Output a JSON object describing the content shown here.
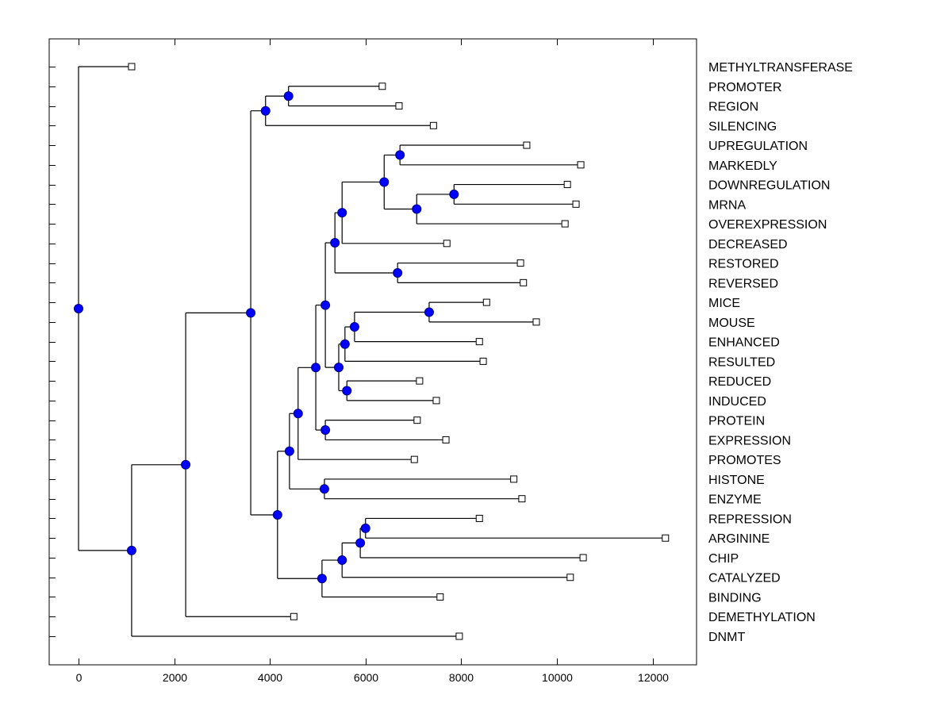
{
  "chart_data": {
    "type": "dendrogram",
    "title": "",
    "xlabel": "",
    "ylabel": "",
    "xlim": [
      -600,
      13000
    ],
    "xticks": [
      0,
      2000,
      4000,
      6000,
      8000,
      10000,
      12000
    ],
    "xtick_labels": [
      "0",
      "2000",
      "4000",
      "6000",
      "8000",
      "10000",
      "12000"
    ],
    "grid": false,
    "colors": {
      "node_fill": "#0000ff",
      "node_stroke": "#000080",
      "leaf_fill": "#ffffff",
      "line": "#000000"
    },
    "leaves": [
      {
        "label": "METHYLTRANSFERASE",
        "x": 1110
      },
      {
        "label": "PROMOTER",
        "x": 6350
      },
      {
        "label": "REGION",
        "x": 6700
      },
      {
        "label": "SILENCING",
        "x": 7420
      },
      {
        "label": "UPREGULATION",
        "x": 9370
      },
      {
        "label": "MARKEDLY",
        "x": 10500
      },
      {
        "label": "DOWNREGULATION",
        "x": 10220
      },
      {
        "label": "MRNA",
        "x": 10400
      },
      {
        "label": "OVEREXPRESSION",
        "x": 10170
      },
      {
        "label": "DECREASED",
        "x": 7700
      },
      {
        "label": "RESTORED",
        "x": 9240
      },
      {
        "label": "REVERSED",
        "x": 9300
      },
      {
        "label": "MICE",
        "x": 8530
      },
      {
        "label": "MOUSE",
        "x": 9570
      },
      {
        "label": "ENHANCED",
        "x": 8380
      },
      {
        "label": "RESULTED",
        "x": 8460
      },
      {
        "label": "REDUCED",
        "x": 7130
      },
      {
        "label": "INDUCED",
        "x": 7480
      },
      {
        "label": "PROTEIN",
        "x": 7080
      },
      {
        "label": "EXPRESSION",
        "x": 7680
      },
      {
        "label": "PROMOTES",
        "x": 7020
      },
      {
        "label": "HISTONE",
        "x": 9100
      },
      {
        "label": "ENZYME",
        "x": 9270
      },
      {
        "label": "REPRESSION",
        "x": 8380
      },
      {
        "label": "ARGININE",
        "x": 12270
      },
      {
        "label": "CHIP",
        "x": 10550
      },
      {
        "label": "CATALYZED",
        "x": 10280
      },
      {
        "label": "BINDING",
        "x": 7560
      },
      {
        "label": "DEMETHYLATION",
        "x": 4500
      },
      {
        "label": "DNMT",
        "x": 7960
      }
    ],
    "nodes": [
      {
        "id": "root",
        "x": 0,
        "children": [
          "L:METHYLTRANSFERASE",
          "A"
        ]
      },
      {
        "id": "A",
        "x": 1110,
        "children": [
          "B",
          "L:DNMT"
        ]
      },
      {
        "id": "B",
        "x": 2240,
        "children": [
          "C",
          "L:DEMETHYLATION"
        ]
      },
      {
        "id": "C",
        "x": 3600,
        "children": [
          "D",
          "E"
        ]
      },
      {
        "id": "D",
        "x": 3910,
        "children": [
          "F",
          "L:SILENCING"
        ]
      },
      {
        "id": "F",
        "x": 4390,
        "children": [
          "L:PROMOTER",
          "L:REGION"
        ]
      },
      {
        "id": "E",
        "x": 4160,
        "children": [
          "G",
          "H"
        ]
      },
      {
        "id": "G",
        "x": 4410,
        "children": [
          "I",
          "J"
        ]
      },
      {
        "id": "J",
        "x": 5140,
        "children": [
          "L:HISTONE",
          "L:ENZYME"
        ]
      },
      {
        "id": "I",
        "x": 4590,
        "children": [
          "K",
          "L:PROMOTES"
        ]
      },
      {
        "id": "K",
        "x": 4960,
        "children": [
          "Lx",
          "M"
        ]
      },
      {
        "id": "M",
        "x": 5160,
        "children": [
          "L:PROTEIN",
          "L:EXPRESSION"
        ]
      },
      {
        "id": "Lx",
        "x": 5160,
        "children": [
          "N",
          "O"
        ]
      },
      {
        "id": "N",
        "x": 5360,
        "children": [
          "P",
          "Q"
        ]
      },
      {
        "id": "Q",
        "x": 6670,
        "children": [
          "L:RESTORED",
          "L:REVERSED"
        ]
      },
      {
        "id": "P",
        "x": 5510,
        "children": [
          "R",
          "L:DECREASED"
        ]
      },
      {
        "id": "R",
        "x": 6390,
        "children": [
          "S",
          "T"
        ]
      },
      {
        "id": "S",
        "x": 6720,
        "children": [
          "L:UPREGULATION",
          "L:MARKEDLY"
        ]
      },
      {
        "id": "T",
        "x": 7070,
        "children": [
          "U",
          "L:OVEREXPRESSION"
        ]
      },
      {
        "id": "U",
        "x": 7850,
        "children": [
          "L:DOWNREGULATION",
          "L:MRNA"
        ]
      },
      {
        "id": "O",
        "x": 5440,
        "children": [
          "V",
          "W"
        ]
      },
      {
        "id": "W",
        "x": 5610,
        "children": [
          "L:REDUCED",
          "L:INDUCED"
        ]
      },
      {
        "id": "V",
        "x": 5570,
        "children": [
          "X",
          "L:RESULTED"
        ]
      },
      {
        "id": "X",
        "x": 5770,
        "children": [
          "Y",
          "L:ENHANCED"
        ]
      },
      {
        "id": "Y",
        "x": 7330,
        "children": [
          "L:MICE",
          "L:MOUSE"
        ]
      },
      {
        "id": "H",
        "x": 5090,
        "children": [
          "Z",
          "L:BINDING"
        ]
      },
      {
        "id": "Z",
        "x": 5510,
        "children": [
          "AA",
          "L:CATALYZED"
        ]
      },
      {
        "id": "AA",
        "x": 5890,
        "children": [
          "AB",
          "L:CHIP"
        ]
      },
      {
        "id": "AB",
        "x": 6000,
        "children": [
          "L:REPRESSION",
          "L:ARGININE"
        ]
      }
    ]
  }
}
